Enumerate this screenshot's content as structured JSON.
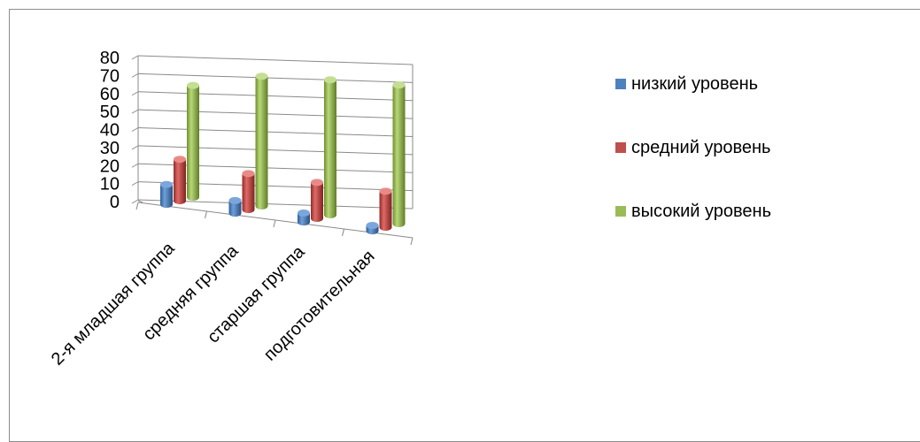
{
  "chart_data": {
    "type": "bar",
    "subtype": "3d-cylinder-clustered",
    "title": "",
    "xlabel": "",
    "ylabel": "",
    "categories": [
      "2-я младшая группа",
      "средняя группа",
      "старшая группа",
      "подготовительная"
    ],
    "series": [
      {
        "name": "низкий уровень",
        "values": [
          11,
          7,
          5,
          3
        ],
        "color": "#4f81bd"
      },
      {
        "name": "средний уровень",
        "values": [
          23,
          20,
          20,
          20
        ],
        "color": "#c0504d"
      },
      {
        "name": "высокий уровень",
        "values": [
          62,
          72,
          75,
          77
        ],
        "color": "#9bbb59"
      }
    ],
    "ylim": [
      0,
      80
    ],
    "yticks": [
      "0",
      "10",
      "20",
      "30",
      "40",
      "50",
      "60",
      "70",
      "80"
    ],
    "grid": true,
    "legend_position": "right"
  }
}
